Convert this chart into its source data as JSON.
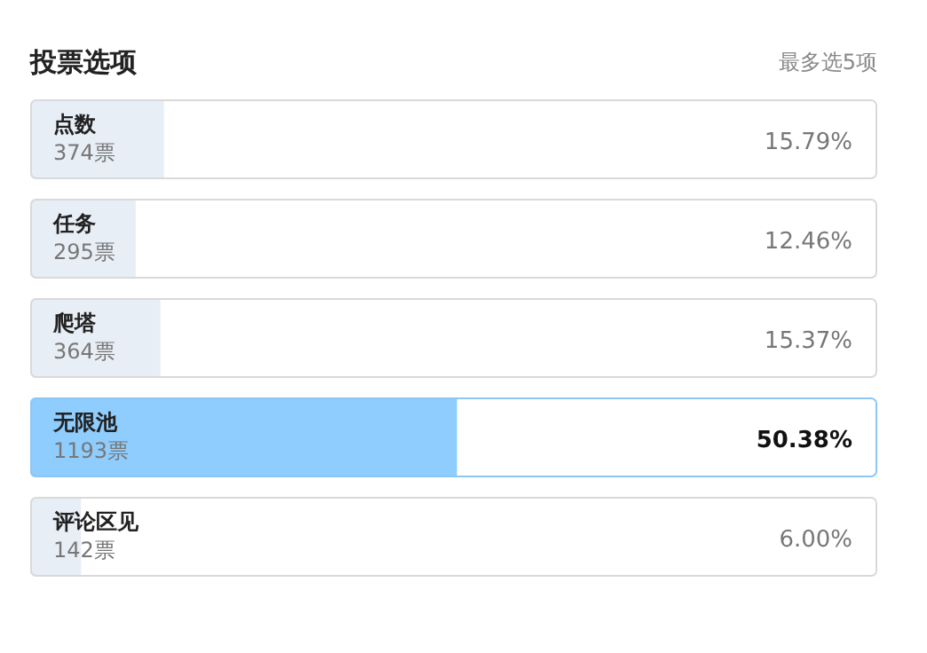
{
  "chart_data": {
    "type": "bar",
    "orientation": "horizontal",
    "title": "投票选项",
    "subtitle": "最多选5项",
    "categories": [
      "点数",
      "任务",
      "爬塔",
      "无限池",
      "评论区见"
    ],
    "values": [
      15.79,
      12.46,
      15.37,
      50.38,
      6.0
    ],
    "value_labels": [
      "15.79%",
      "12.46%",
      "15.37%",
      "50.38%",
      "6.00%"
    ],
    "colors": [
      "#e8eef6",
      "#e8eef6",
      "#e8eef6",
      "#8ecdfd",
      "#e8eef6"
    ],
    "xlim": [
      0,
      100
    ],
    "annotations": [
      "374票",
      "295票",
      "364票",
      "1193票",
      "142票"
    ]
  }
}
